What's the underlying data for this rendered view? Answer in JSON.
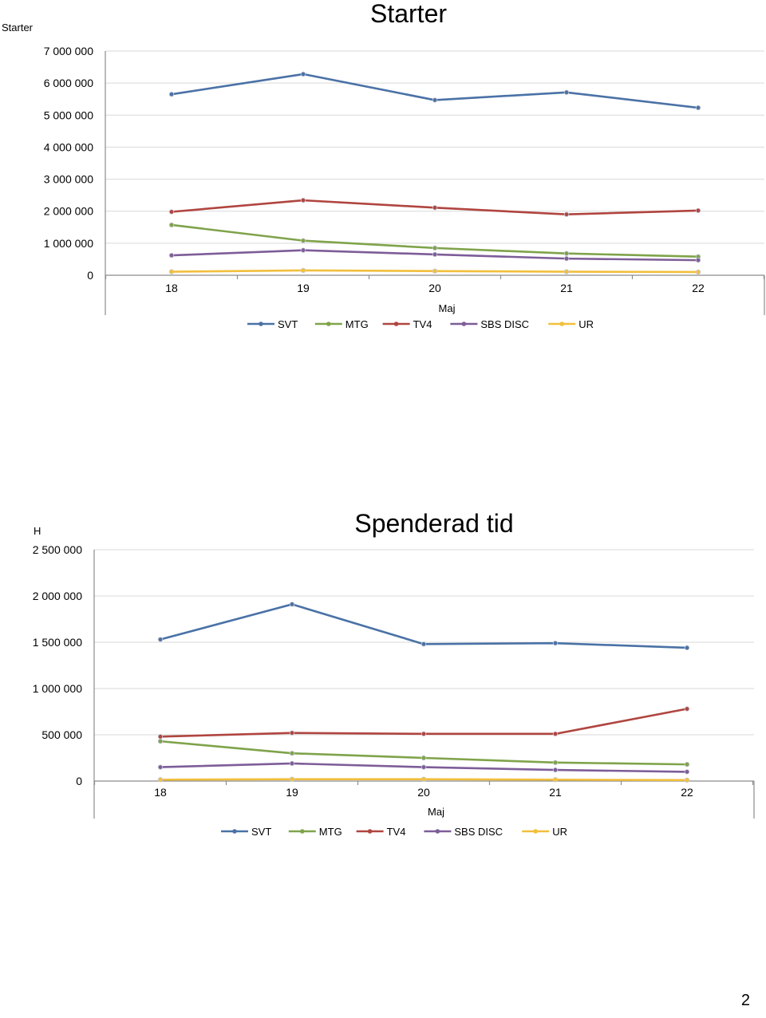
{
  "chart_data": [
    {
      "type": "line",
      "title": "Starter",
      "ylabel": "Starter",
      "xlabel": "Maj",
      "categories": [
        "18",
        "19",
        "20",
        "21",
        "22"
      ],
      "ylim": [
        0,
        7000000
      ],
      "yticks": [
        0,
        1000000,
        2000000,
        3000000,
        4000000,
        5000000,
        6000000,
        7000000
      ],
      "ytick_labels": [
        "0",
        "1 000 000",
        "2 000 000",
        "3 000 000",
        "4 000 000",
        "5 000 000",
        "6 000 000",
        "7 000 000"
      ],
      "grid": true,
      "legend_position": "bottom",
      "series": [
        {
          "name": "SVT",
          "color": "#4A72A6",
          "values": [
            5650000,
            6280000,
            5470000,
            5710000,
            5230000
          ]
        },
        {
          "name": "MTG",
          "color": "#7FA34A",
          "values": [
            1570000,
            1080000,
            850000,
            680000,
            580000
          ]
        },
        {
          "name": "TV4",
          "color": "#B04540",
          "values": [
            1980000,
            2340000,
            2110000,
            1900000,
            2020000
          ]
        },
        {
          "name": "SBS DISC",
          "color": "#7D5D98",
          "values": [
            620000,
            780000,
            650000,
            520000,
            470000
          ]
        },
        {
          "name": "UR",
          "color": "#F2BF3C",
          "values": [
            110000,
            150000,
            130000,
            110000,
            100000
          ]
        }
      ]
    },
    {
      "type": "line",
      "title": "Spenderad tid",
      "ylabel": "H",
      "xlabel": "Maj",
      "categories": [
        "18",
        "19",
        "20",
        "21",
        "22"
      ],
      "ylim": [
        0,
        2500000
      ],
      "yticks": [
        0,
        500000,
        1000000,
        1500000,
        2000000,
        2500000
      ],
      "ytick_labels": [
        "0",
        "500 000",
        "1 000 000",
        "1 500 000",
        "2 000 000",
        "2 500 000"
      ],
      "grid": true,
      "legend_position": "bottom",
      "series": [
        {
          "name": "SVT",
          "color": "#4A72A6",
          "values": [
            1530000,
            1910000,
            1480000,
            1490000,
            1440000
          ]
        },
        {
          "name": "MTG",
          "color": "#7FA34A",
          "values": [
            430000,
            300000,
            250000,
            200000,
            180000
          ]
        },
        {
          "name": "TV4",
          "color": "#B04540",
          "values": [
            480000,
            520000,
            510000,
            510000,
            780000
          ]
        },
        {
          "name": "SBS DISC",
          "color": "#7D5D98",
          "values": [
            150000,
            190000,
            150000,
            120000,
            100000
          ]
        },
        {
          "name": "UR",
          "color": "#F2BF3C",
          "values": [
            15000,
            20000,
            20000,
            15000,
            10000
          ]
        }
      ]
    }
  ],
  "page_number": "2"
}
